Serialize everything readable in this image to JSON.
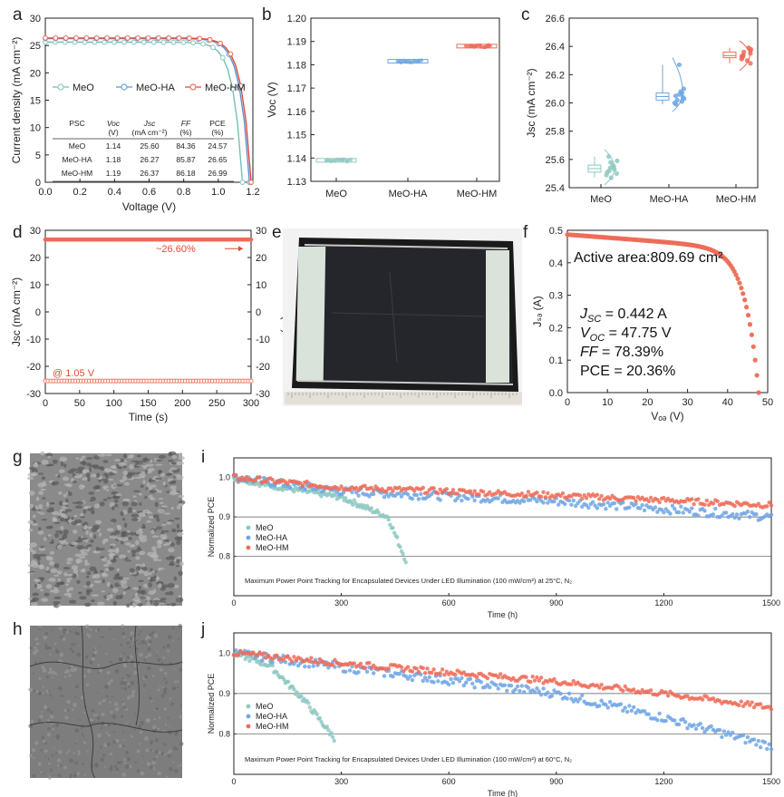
{
  "colors": {
    "meo": "#8ec9c2",
    "ha": "#6fa6e4",
    "hm": "#ee6b57",
    "hm_line": "#e04a35",
    "ha_line": "#5b93d8",
    "meo_line": "#74bfb6"
  },
  "panel_labels": {
    "a": "a",
    "b": "b",
    "c": "c",
    "d": "d",
    "e": "e",
    "f": "f",
    "g": "g",
    "h": "h",
    "i": "i",
    "j": "j"
  },
  "chart_data": [
    {
      "id": "a",
      "type": "line",
      "xlabel": "Voltage (V)",
      "ylabel": "Current density (mA cm⁻²)",
      "xlim": [
        0.0,
        1.2
      ],
      "ylim": [
        0,
        30
      ],
      "xticks": [
        "0.0",
        "0.2",
        "0.4",
        "0.6",
        "0.8",
        "1.0",
        "1.2"
      ],
      "yticks": [
        "0",
        "5",
        "10",
        "15",
        "20",
        "25",
        "30"
      ],
      "legend": [
        "MeO",
        "MeO-HA",
        "MeO-HM"
      ],
      "series": [
        {
          "name": "MeO",
          "jsc": 25.6,
          "voc": 1.14,
          "ff": 84.36
        },
        {
          "name": "MeO-HA",
          "jsc": 26.27,
          "voc": 1.18,
          "ff": 85.87
        },
        {
          "name": "MeO-HM",
          "jsc": 26.37,
          "voc": 1.19,
          "ff": 86.18
        }
      ],
      "table": {
        "headers": [
          "PSC",
          "Voc",
          "Jsc",
          "FF",
          "PCE"
        ],
        "units": [
          "",
          "(V)",
          "(mA cm⁻²)",
          "(%)",
          "(%)"
        ],
        "rows": [
          [
            "MeO",
            "1.14",
            "25.60",
            "84.36",
            "24.57"
          ],
          [
            "MeO-HA",
            "1.18",
            "26.27",
            "85.87",
            "26.65"
          ],
          [
            "MeO-HM",
            "1.19",
            "26.37",
            "86.18",
            "26.99"
          ]
        ]
      }
    },
    {
      "id": "b",
      "type": "scatter",
      "ylabel": "Voc (V)",
      "ylim": [
        1.13,
        1.2
      ],
      "yticks": [
        "1.13",
        "1.14",
        "1.15",
        "1.16",
        "1.17",
        "1.18",
        "1.19",
        "1.20"
      ],
      "categories": [
        "MeO",
        "MeO-HA",
        "MeO-HM"
      ],
      "values": [
        1.139,
        1.1815,
        1.188
      ]
    },
    {
      "id": "c",
      "type": "scatter",
      "ylabel": "Jsc (mA cm⁻²)",
      "ylim": [
        25.4,
        26.6
      ],
      "yticks": [
        "25.4",
        "25.6",
        "25.8",
        "26.0",
        "26.2",
        "26.4",
        "26.6"
      ],
      "categories": [
        "MeO",
        "MeO-HA",
        "MeO-HM"
      ],
      "points": [
        [
          25.62,
          25.58,
          25.55,
          25.53,
          25.52,
          25.5,
          25.49,
          25.54,
          25.56,
          25.47,
          25.51,
          25.59
        ],
        [
          26.27,
          26.1,
          26.08,
          26.06,
          26.05,
          26.04,
          26.03,
          26.02,
          26.0,
          25.99,
          26.07,
          26.01
        ],
        [
          26.39,
          26.38,
          26.36,
          26.35,
          26.34,
          26.33,
          26.32,
          26.31,
          26.3,
          26.28,
          26.37,
          26.33
        ]
      ]
    },
    {
      "id": "d",
      "type": "line",
      "xlabel": "Time (s)",
      "ylabel": "Jsc (mA cm⁻²)",
      "ylabel2": "PCE (%)",
      "xlim": [
        0,
        300
      ],
      "ylim": [
        -30,
        30
      ],
      "xticks": [
        "0",
        "50",
        "100",
        "150",
        "200",
        "250",
        "300"
      ],
      "yticks": [
        "-30",
        "-20",
        "-10",
        "0",
        "10",
        "20",
        "30"
      ],
      "y2ticks": [
        "-30",
        "-20",
        "-10",
        "0",
        "10",
        "20",
        "30"
      ],
      "series": [
        {
          "name": "PCE",
          "value": 26.6,
          "color": "hm"
        },
        {
          "name": "Jsc",
          "value": -25.4,
          "color": "hm"
        }
      ],
      "annotations": [
        "~26.60%",
        "@ 1.05 V"
      ]
    },
    {
      "id": "f",
      "type": "line",
      "xlabel": "Vₒₔ (V)",
      "ylabel": "Jₛₔ (A)",
      "xlim": [
        0,
        50
      ],
      "ylim": [
        0.0,
        0.5
      ],
      "xticks": [
        "0",
        "10",
        "20",
        "30",
        "40",
        "50"
      ],
      "yticks": [
        "0.0",
        "0.1",
        "0.2",
        "0.3",
        "0.4",
        "0.5"
      ],
      "series": [
        {
          "name": "module",
          "jsc": 0.442,
          "voc": 47.75
        }
      ],
      "annotations": {
        "area": "Active area:809.69 cm²",
        "jsc_label": "J",
        "jsc_sub": "SC",
        "jsc_value": " = 0.442 A",
        "voc_label": "V",
        "voc_sub": "OC",
        "voc_value": " = 47.75 V",
        "ff_label": "FF",
        "ff_value": " = 78.39%",
        "pce": "PCE = 20.36%"
      }
    },
    {
      "id": "i",
      "type": "scatter",
      "xlabel": "Time (h)",
      "ylabel": "Normalized PCE",
      "xlim": [
        0,
        1500
      ],
      "ylim": [
        0.7,
        1.05
      ],
      "xticks": [
        "0",
        "300",
        "600",
        "900",
        "1200",
        "1500"
      ],
      "yticks": [
        "0.8",
        "0.9",
        "1.0"
      ],
      "ref_lines": [
        0.9,
        0.8
      ],
      "legend": [
        "MeO",
        "MeO-HA",
        "MeO-HM"
      ],
      "caption": "Maximum Power Point Tracking for Encapsulated Devices Under LED Illumination (100 mW/cm²) at 25°C, N₂",
      "series": [
        {
          "name": "MeO",
          "end_x": 480,
          "keypoints": [
            [
              0,
              1.0
            ],
            [
              100,
              0.98
            ],
            [
              300,
              0.95
            ],
            [
              430,
              0.9
            ],
            [
              480,
              0.79
            ]
          ]
        },
        {
          "name": "MeO-HA",
          "end_x": 1500,
          "keypoints": [
            [
              0,
              1.0
            ],
            [
              300,
              0.965
            ],
            [
              900,
              0.94
            ],
            [
              1500,
              0.9
            ]
          ]
        },
        {
          "name": "MeO-HM",
          "end_x": 1500,
          "keypoints": [
            [
              0,
              1.0
            ],
            [
              300,
              0.975
            ],
            [
              900,
              0.955
            ],
            [
              1500,
              0.93
            ]
          ]
        }
      ]
    },
    {
      "id": "j",
      "type": "scatter",
      "xlabel": "Time (h)",
      "ylabel": "Normalized PCE",
      "xlim": [
        0,
        1500
      ],
      "ylim": [
        0.7,
        1.05
      ],
      "xticks": [
        "0",
        "300",
        "600",
        "900",
        "1200",
        "1500"
      ],
      "yticks": [
        "0.8",
        "0.9",
        "1.0"
      ],
      "ref_lines": [
        0.9,
        0.8
      ],
      "legend": [
        "MeO",
        "MeO-HA",
        "MeO-HM"
      ],
      "caption": "Maximum Power Point Tracking for Encapsulated Devices Under LED Illumination (100 mW/cm²) at 60°C, N₂",
      "series": [
        {
          "name": "MeO",
          "end_x": 280,
          "keypoints": [
            [
              0,
              1.0
            ],
            [
              100,
              0.97
            ],
            [
              200,
              0.88
            ],
            [
              280,
              0.79
            ]
          ]
        },
        {
          "name": "MeO-HA",
          "end_x": 1500,
          "keypoints": [
            [
              0,
              1.0
            ],
            [
              300,
              0.965
            ],
            [
              900,
              0.9
            ],
            [
              1200,
              0.84
            ],
            [
              1500,
              0.77
            ]
          ]
        },
        {
          "name": "MeO-HM",
          "end_x": 1500,
          "keypoints": [
            [
              0,
              1.0
            ],
            [
              300,
              0.975
            ],
            [
              900,
              0.93
            ],
            [
              1200,
              0.9
            ],
            [
              1500,
              0.865
            ]
          ]
        }
      ]
    }
  ]
}
